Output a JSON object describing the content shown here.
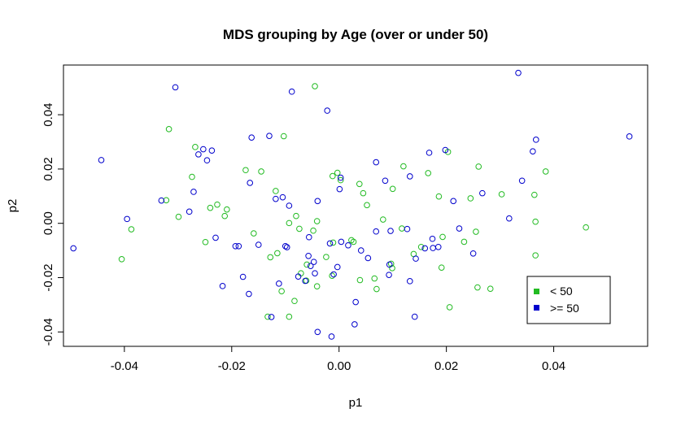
{
  "chart_data": {
    "type": "scatter",
    "title": "MDS grouping by Age (over or under 50)",
    "xlabel": "p1",
    "ylabel": "p2",
    "xlim": [
      -0.05135,
      0.0575
    ],
    "ylim": [
      -0.0453,
      0.0583
    ],
    "xticks": [
      -0.04,
      -0.02,
      0.0,
      0.02,
      0.04
    ],
    "xtick_labels": [
      "-0.04",
      "-0.02",
      "0.00",
      "0.02",
      "0.04"
    ],
    "yticks": [
      -0.04,
      -0.02,
      0.0,
      0.02,
      0.04
    ],
    "ytick_labels": [
      "-0.04",
      "-0.02",
      "0.00",
      "0.02",
      "0.04"
    ],
    "grid": false,
    "legend_position": "bottom-right",
    "series": [
      {
        "name": "< 50",
        "color": "#22BB22",
        "points": [
          [
            -0.0317,
            0.0347
          ],
          [
            -0.0405,
            -0.0132
          ],
          [
            -0.0387,
            -0.0022
          ],
          [
            -0.0322,
            0.0085
          ],
          [
            -0.0299,
            0.0024
          ],
          [
            -0.0274,
            0.0171
          ],
          [
            -0.0268,
            0.0281
          ],
          [
            -0.024,
            0.0057
          ],
          [
            -0.0227,
            0.0069
          ],
          [
            -0.0213,
            0.0027
          ],
          [
            -0.0209,
            0.0051
          ],
          [
            -0.0249,
            -0.0069
          ],
          [
            -0.0174,
            0.0196
          ],
          [
            -0.0159,
            -0.0037
          ],
          [
            -0.0145,
            0.0191
          ],
          [
            -0.0128,
            -0.0125
          ],
          [
            -0.0118,
            0.0119
          ],
          [
            -0.0103,
            0.0321
          ],
          [
            -0.0093,
            0.0001
          ],
          [
            -0.0115,
            -0.011
          ],
          [
            -0.0107,
            -0.025
          ],
          [
            -0.0093,
            -0.0344
          ],
          [
            -0.0083,
            -0.0286
          ],
          [
            -0.008,
            0.0027
          ],
          [
            -0.0074,
            -0.002
          ],
          [
            -0.006,
            -0.0152
          ],
          [
            -0.0061,
            -0.0211
          ],
          [
            -0.0048,
            -0.0027
          ],
          [
            -0.0041,
            -0.0232
          ],
          [
            -0.0041,
            0.0008
          ],
          [
            -0.0024,
            -0.0124
          ],
          [
            -0.0013,
            -0.0193
          ],
          [
            -0.0011,
            -0.0071
          ],
          [
            -0.0012,
            0.0174
          ],
          [
            -0.0003,
            0.0186
          ],
          [
            0.0003,
            0.0159
          ],
          [
            0.0023,
            -0.0062
          ],
          [
            0.0027,
            -0.0068
          ],
          [
            0.0038,
            0.0145
          ],
          [
            0.0039,
            -0.0209
          ],
          [
            0.0045,
            0.0111
          ],
          [
            0.0052,
            0.0067
          ],
          [
            0.0066,
            -0.0203
          ],
          [
            0.007,
            -0.0242
          ],
          [
            0.0082,
            0.0014
          ],
          [
            0.0097,
            -0.0149
          ],
          [
            0.0099,
            -0.0165
          ],
          [
            0.01,
            0.0127
          ],
          [
            0.0117,
            -0.0019
          ],
          [
            0.012,
            0.021
          ],
          [
            0.0139,
            -0.0113
          ],
          [
            0.0153,
            -0.0087
          ],
          [
            0.0166,
            0.0185
          ],
          [
            0.0186,
            0.0099
          ],
          [
            0.0191,
            -0.0163
          ],
          [
            0.0193,
            -0.005
          ],
          [
            0.0203,
            0.0263
          ],
          [
            0.0206,
            -0.0309
          ],
          [
            0.0233,
            -0.0068
          ],
          [
            0.0245,
            0.0092
          ],
          [
            0.0255,
            -0.0031
          ],
          [
            0.0258,
            -0.0236
          ],
          [
            0.026,
            0.0209
          ],
          [
            0.0282,
            -0.0241
          ],
          [
            0.0303,
            0.0107
          ],
          [
            0.0364,
            0.0105
          ],
          [
            0.0366,
            0.0006
          ],
          [
            0.0366,
            -0.0118
          ],
          [
            0.0385,
            0.0191
          ],
          [
            0.046,
            -0.0015
          ],
          [
            -0.0045,
            0.0505
          ],
          [
            -0.0133,
            -0.0344
          ],
          [
            -0.0071,
            -0.0184
          ]
        ]
      },
      {
        "name": ">= 50",
        "color": "#0000CC",
        "points": [
          [
            -0.0305,
            0.0501
          ],
          [
            -0.0443,
            0.0233
          ],
          [
            -0.0495,
            -0.0092
          ],
          [
            -0.0395,
            0.0016
          ],
          [
            -0.0331,
            0.0084
          ],
          [
            -0.0279,
            0.0043
          ],
          [
            -0.0271,
            0.0116
          ],
          [
            -0.0262,
            0.0254
          ],
          [
            -0.0253,
            0.0273
          ],
          [
            -0.0246,
            0.0232
          ],
          [
            -0.0237,
            0.0268
          ],
          [
            -0.023,
            -0.0053
          ],
          [
            -0.0217,
            -0.0231
          ],
          [
            -0.0193,
            -0.0084
          ],
          [
            -0.0187,
            -0.0084
          ],
          [
            -0.0179,
            -0.0197
          ],
          [
            -0.0166,
            0.0149
          ],
          [
            -0.0163,
            0.0316
          ],
          [
            -0.0168,
            -0.026
          ],
          [
            -0.015,
            -0.0079
          ],
          [
            -0.013,
            0.0322
          ],
          [
            -0.0126,
            -0.0345
          ],
          [
            -0.0118,
            0.009
          ],
          [
            -0.0112,
            -0.0222
          ],
          [
            -0.0105,
            0.0096
          ],
          [
            -0.01,
            -0.0084
          ],
          [
            -0.0097,
            -0.0088
          ],
          [
            -0.0093,
            0.0065
          ],
          [
            -0.0088,
            0.0485
          ],
          [
            -0.0076,
            -0.0196
          ],
          [
            -0.0063,
            -0.0212
          ],
          [
            -0.0056,
            -0.0051
          ],
          [
            -0.0057,
            -0.012
          ],
          [
            -0.0053,
            -0.0157
          ],
          [
            -0.0047,
            -0.0142
          ],
          [
            -0.0045,
            -0.0184
          ],
          [
            -0.004,
            -0.04
          ],
          [
            -0.0022,
            0.0415
          ],
          [
            -0.0017,
            -0.0074
          ],
          [
            -0.0014,
            -0.0417
          ],
          [
            -0.001,
            -0.0188
          ],
          [
            0.0001,
            0.0126
          ],
          [
            0.0003,
            0.0168
          ],
          [
            -0.0003,
            -0.0161
          ],
          [
            0.0004,
            -0.0068
          ],
          [
            0.0017,
            -0.0081
          ],
          [
            0.0029,
            -0.0372
          ],
          [
            0.0031,
            -0.029
          ],
          [
            0.0041,
            -0.01
          ],
          [
            0.0054,
            -0.0128
          ],
          [
            0.0069,
            0.0225
          ],
          [
            0.0069,
            -0.003
          ],
          [
            0.0086,
            0.0157
          ],
          [
            0.0096,
            -0.0028
          ],
          [
            0.0094,
            -0.0152
          ],
          [
            0.0127,
            -0.0021
          ],
          [
            0.0132,
            -0.0213
          ],
          [
            0.0132,
            0.0173
          ],
          [
            0.0143,
            -0.013
          ],
          [
            0.0141,
            -0.0344
          ],
          [
            0.016,
            -0.0092
          ],
          [
            0.0168,
            0.026
          ],
          [
            0.0174,
            -0.0057
          ],
          [
            0.0175,
            -0.0091
          ],
          [
            0.0185,
            -0.0087
          ],
          [
            0.0198,
            0.027
          ],
          [
            0.0213,
            0.0082
          ],
          [
            0.0224,
            -0.0019
          ],
          [
            0.025,
            -0.0111
          ],
          [
            0.0267,
            0.0111
          ],
          [
            0.0317,
            0.0018
          ],
          [
            0.0334,
            0.0554
          ],
          [
            0.0341,
            0.0157
          ],
          [
            0.0361,
            0.0265
          ],
          [
            0.0367,
            0.0308
          ],
          [
            0.0541,
            0.032
          ],
          [
            0.0093,
            -0.019
          ],
          [
            -0.004,
            0.0082
          ]
        ]
      }
    ]
  }
}
